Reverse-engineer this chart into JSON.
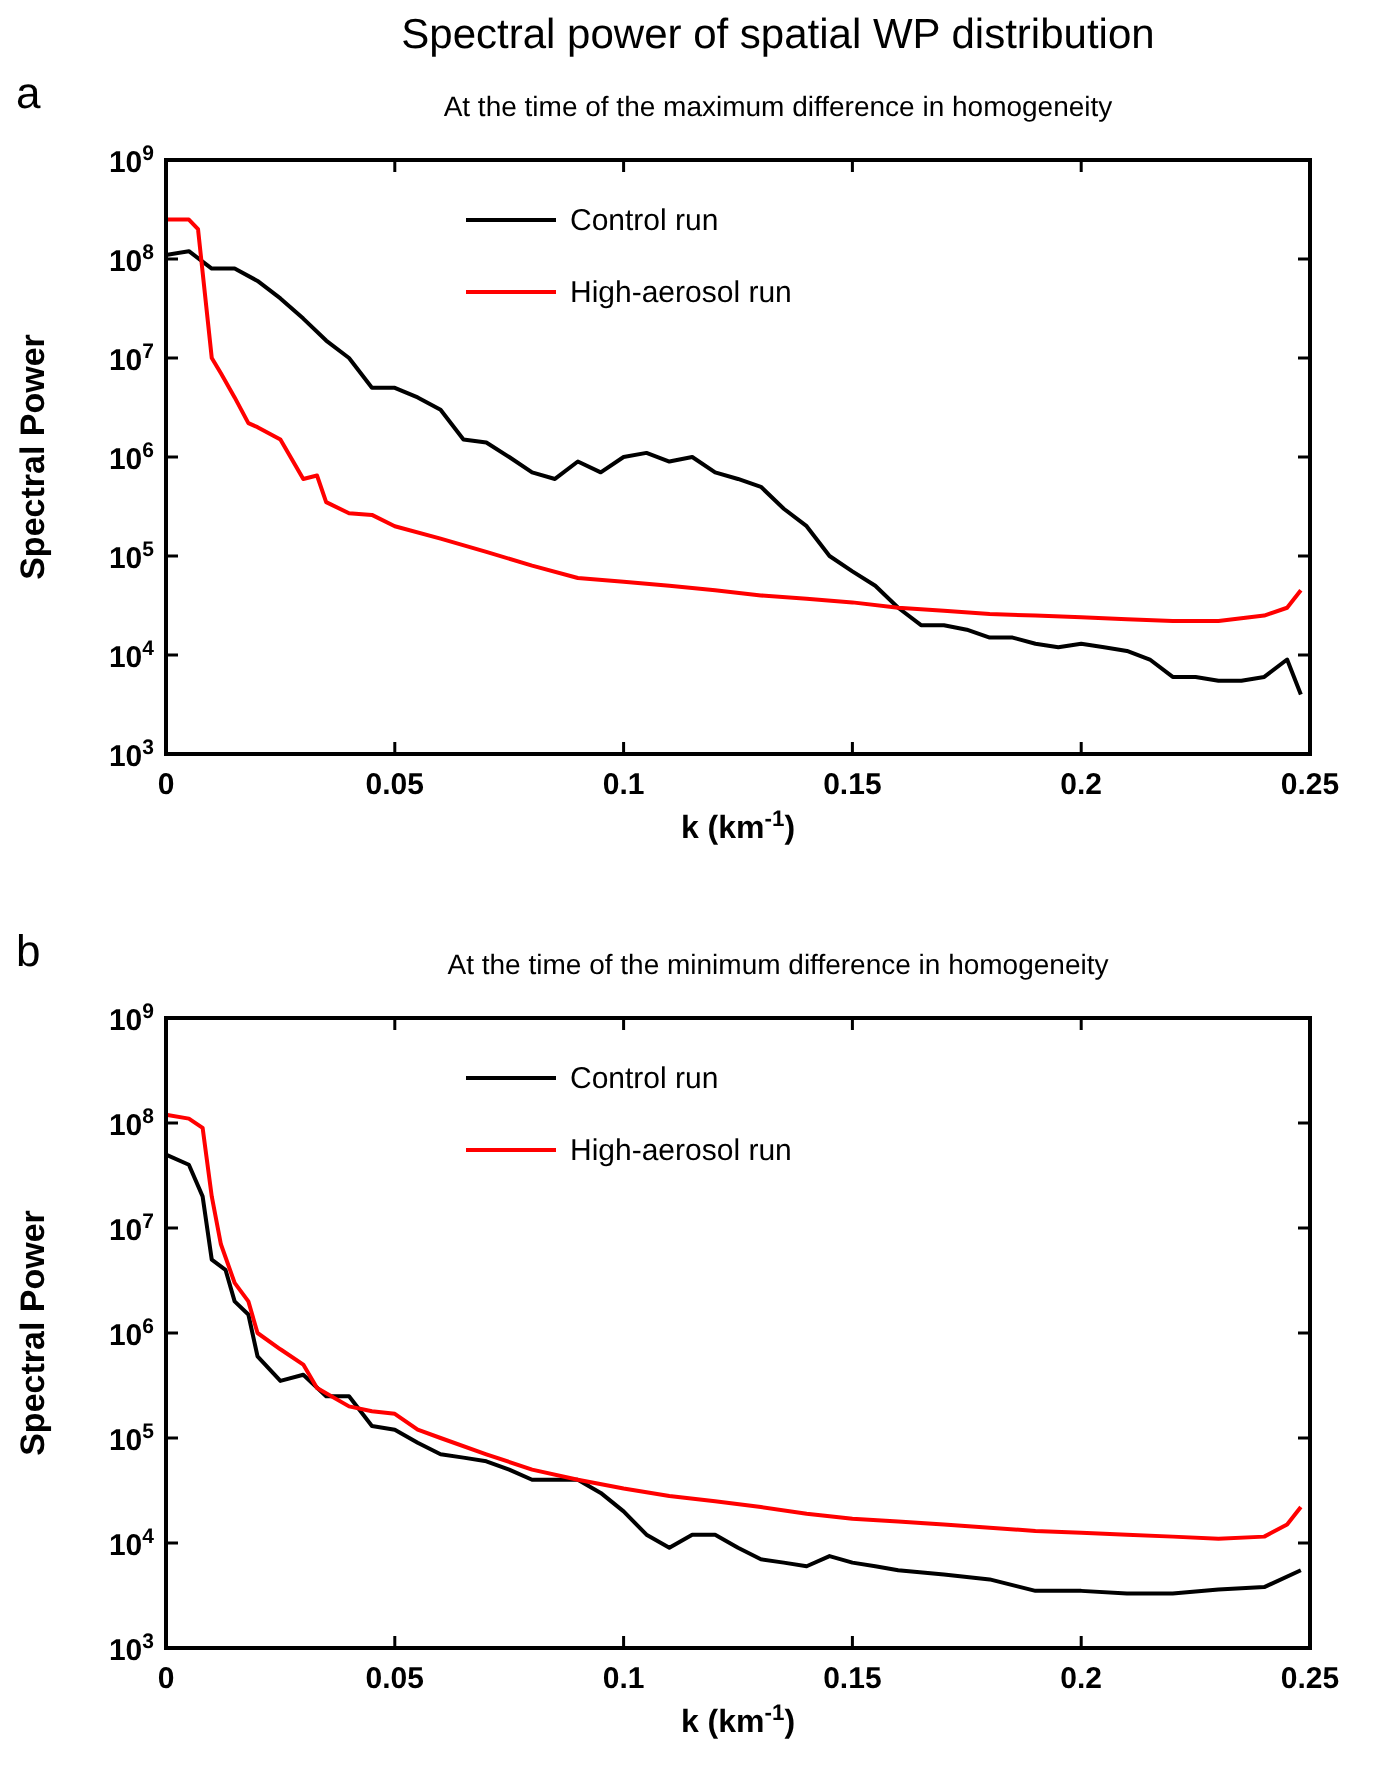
{
  "chart_data": [
    {
      "type": "line",
      "title": "Spectral power of spatial WP distribution",
      "subtitle": "At the time of the maximum difference in homogeneity",
      "annotations": [
        "a"
      ],
      "xlabel": "k (km$^{-1}$)",
      "ylabel": "Spectral Power",
      "log": "y",
      "grid": false,
      "legend": "top",
      "marker": "none",
      "line_style": "solid",
      "xlim": [
        0,
        0.25
      ],
      "xticks": [
        0,
        0.05,
        0.1,
        0.15,
        0.2,
        0.25
      ],
      "ylim": [
        1000,
        1000000000
      ],
      "yticks": [
        {
          "value": 1000,
          "label": "10$^{3}$"
        },
        {
          "value": 10000,
          "label": "10$^{4}$"
        },
        {
          "value": 100000,
          "label": "10$^{5}$"
        },
        {
          "value": 1000000,
          "label": "10$^{6}$"
        },
        {
          "value": 10000000,
          "label": "10$^{7}$"
        },
        {
          "value": 100000000,
          "label": "10$^{8}$"
        },
        {
          "value": 1000000000,
          "label": "10$^{9}$"
        }
      ],
      "series": [
        {
          "name": "Control run",
          "color": "#000000",
          "x": [
            0,
            0.005,
            0.01,
            0.015,
            0.02,
            0.025,
            0.03,
            0.035,
            0.04,
            0.045,
            0.05,
            0.055,
            0.06,
            0.065,
            0.07,
            0.075,
            0.08,
            0.085,
            0.09,
            0.095,
            0.1,
            0.105,
            0.11,
            0.115,
            0.12,
            0.125,
            0.13,
            0.135,
            0.14,
            0.145,
            0.15,
            0.155,
            0.16,
            0.165,
            0.17,
            0.175,
            0.18,
            0.185,
            0.19,
            0.195,
            0.2,
            0.205,
            0.21,
            0.215,
            0.22,
            0.225,
            0.23,
            0.235,
            0.24,
            0.245,
            0.248
          ],
          "values": [
            110000000,
            120000000,
            80000000,
            80000000,
            60000000,
            40000000,
            25000000,
            15000000,
            10000000,
            5000000,
            5000000,
            4000000,
            3000000,
            1500000,
            1400000,
            1000000,
            700000,
            600000,
            900000,
            700000,
            1000000,
            1100000,
            900000,
            1000000,
            700000,
            600000,
            500000,
            300000,
            200000,
            100000,
            70000,
            50000,
            30000,
            20000,
            20000,
            18000,
            15000,
            15000,
            13000,
            12000,
            13000,
            12000,
            11000,
            9000,
            6000,
            6000,
            5500,
            5500,
            6000,
            9000,
            4000
          ]
        },
        {
          "name": "High-aerosol run",
          "color": "#ff0000",
          "x": [
            0,
            0.005,
            0.007,
            0.01,
            0.012,
            0.015,
            0.018,
            0.02,
            0.025,
            0.03,
            0.033,
            0.035,
            0.04,
            0.045,
            0.05,
            0.06,
            0.07,
            0.08,
            0.09,
            0.1,
            0.11,
            0.12,
            0.13,
            0.14,
            0.15,
            0.16,
            0.17,
            0.18,
            0.19,
            0.2,
            0.21,
            0.22,
            0.23,
            0.24,
            0.245,
            0.248
          ],
          "values": [
            250000000,
            250000000,
            200000000,
            10000000,
            7000000,
            4000000,
            2200000,
            2000000,
            1500000,
            600000,
            650000,
            350000,
            270000,
            260000,
            200000,
            150000,
            110000,
            80000,
            60000,
            55000,
            50000,
            45000,
            40000,
            37000,
            34000,
            30000,
            28000,
            26000,
            25000,
            24000,
            23000,
            22000,
            22000,
            25000,
            30000,
            45000
          ]
        }
      ]
    },
    {
      "type": "line",
      "subtitle": "At the time of the minimum difference in homogeneity",
      "annotations": [
        "b"
      ],
      "xlabel": "k (km$^{-1}$)",
      "ylabel": "Spectral Power",
      "log": "y",
      "grid": false,
      "legend": "top",
      "marker": "none",
      "line_style": "solid",
      "xlim": [
        0,
        0.25
      ],
      "xticks": [
        0,
        0.05,
        0.1,
        0.15,
        0.2,
        0.25
      ],
      "ylim": [
        1000,
        1000000000
      ],
      "yticks": [
        {
          "value": 1000,
          "label": "10$^{3}$"
        },
        {
          "value": 10000,
          "label": "10$^{4}$"
        },
        {
          "value": 100000,
          "label": "10$^{5}$"
        },
        {
          "value": 1000000,
          "label": "10$^{6}$"
        },
        {
          "value": 10000000,
          "label": "10$^{7}$"
        },
        {
          "value": 100000000,
          "label": "10$^{8}$"
        },
        {
          "value": 1000000000,
          "label": "10$^{9}$"
        }
      ],
      "series": [
        {
          "name": "Control run",
          "color": "#000000",
          "x": [
            0,
            0.005,
            0.008,
            0.01,
            0.013,
            0.015,
            0.018,
            0.02,
            0.025,
            0.03,
            0.035,
            0.04,
            0.045,
            0.05,
            0.055,
            0.06,
            0.065,
            0.07,
            0.075,
            0.08,
            0.085,
            0.09,
            0.095,
            0.1,
            0.105,
            0.11,
            0.115,
            0.12,
            0.125,
            0.13,
            0.135,
            0.14,
            0.145,
            0.15,
            0.155,
            0.16,
            0.17,
            0.18,
            0.19,
            0.2,
            0.21,
            0.22,
            0.23,
            0.24,
            0.248
          ],
          "values": [
            50000000,
            40000000,
            20000000,
            5000000,
            4000000,
            2000000,
            1500000,
            600000,
            350000,
            400000,
            250000,
            250000,
            130000,
            120000,
            90000,
            70000,
            65000,
            60000,
            50000,
            40000,
            40000,
            40000,
            30000,
            20000,
            12000,
            9000,
            12000,
            12000,
            9000,
            7000,
            6500,
            6000,
            7500,
            6500,
            6000,
            5500,
            5000,
            4500,
            3500,
            3500,
            3300,
            3300,
            3600,
            3800,
            5500
          ]
        },
        {
          "name": "High-aerosol run",
          "color": "#ff0000",
          "x": [
            0,
            0.005,
            0.008,
            0.01,
            0.012,
            0.015,
            0.018,
            0.02,
            0.025,
            0.03,
            0.033,
            0.04,
            0.045,
            0.05,
            0.055,
            0.06,
            0.07,
            0.08,
            0.09,
            0.1,
            0.11,
            0.12,
            0.13,
            0.14,
            0.15,
            0.16,
            0.17,
            0.18,
            0.19,
            0.2,
            0.21,
            0.22,
            0.23,
            0.24,
            0.245,
            0.248
          ],
          "values": [
            120000000,
            110000000,
            90000000,
            20000000,
            7000000,
            3000000,
            2000000,
            1000000,
            700000,
            500000,
            300000,
            200000,
            180000,
            170000,
            120000,
            100000,
            70000,
            50000,
            40000,
            33000,
            28000,
            25000,
            22000,
            19000,
            17000,
            16000,
            15000,
            14000,
            13000,
            12500,
            12000,
            11500,
            11000,
            11500,
            15000,
            22000
          ]
        }
      ]
    }
  ]
}
